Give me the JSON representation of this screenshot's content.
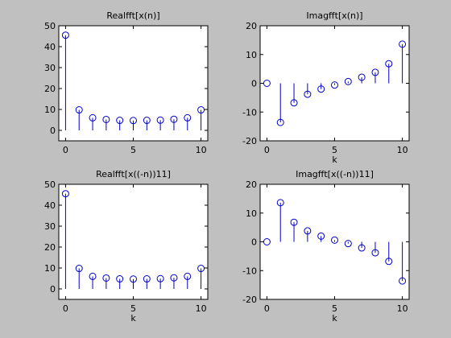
{
  "figure": {
    "background": "#c0c0c0",
    "axes_background": "#ffffff",
    "stem_color": "#0000cc"
  },
  "chart_data": [
    {
      "type": "stem",
      "title": "Realfft[x(n)]",
      "xlabel": "",
      "ylabel": "",
      "xlim": [
        -0.5,
        10.5
      ],
      "ylim": [
        -5,
        50
      ],
      "xticks": [
        0,
        5,
        10
      ],
      "yticks": [
        0,
        10,
        20,
        30,
        40,
        50
      ],
      "x": [
        0,
        1,
        2,
        3,
        4,
        5,
        6,
        7,
        8,
        9,
        10
      ],
      "values": [
        45.5,
        9.8,
        6.0,
        5.2,
        4.8,
        4.7,
        4.8,
        4.9,
        5.3,
        6.0,
        9.8
      ]
    },
    {
      "type": "stem",
      "title": "Imagfft[x(n)]",
      "xlabel": "k",
      "ylabel": "",
      "xlim": [
        -0.5,
        10.5
      ],
      "ylim": [
        -20,
        20
      ],
      "xticks": [
        0,
        5,
        10
      ],
      "yticks": [
        -20,
        -10,
        0,
        10,
        20
      ],
      "x": [
        0,
        1,
        2,
        3,
        4,
        5,
        6,
        7,
        8,
        9,
        10
      ],
      "values": [
        0,
        -13.6,
        -6.8,
        -3.8,
        -2.0,
        -0.6,
        0.6,
        2.1,
        3.8,
        6.8,
        13.6
      ]
    },
    {
      "type": "stem",
      "title": "Realfft[x((-n))11]",
      "xlabel": "k",
      "ylabel": "",
      "xlim": [
        -0.5,
        10.5
      ],
      "ylim": [
        -5,
        50
      ],
      "xticks": [
        0,
        5,
        10
      ],
      "yticks": [
        0,
        10,
        20,
        30,
        40,
        50
      ],
      "x": [
        0,
        1,
        2,
        3,
        4,
        5,
        6,
        7,
        8,
        9,
        10
      ],
      "values": [
        45.5,
        9.8,
        6.0,
        5.2,
        4.8,
        4.7,
        4.8,
        4.9,
        5.3,
        6.0,
        9.8
      ]
    },
    {
      "type": "stem",
      "title": "Imagfft[x((-n))11]",
      "xlabel": "k",
      "ylabel": "",
      "xlim": [
        -0.5,
        10.5
      ],
      "ylim": [
        -20,
        20
      ],
      "xticks": [
        0,
        5,
        10
      ],
      "yticks": [
        -20,
        -10,
        0,
        10,
        20
      ],
      "x": [
        0,
        1,
        2,
        3,
        4,
        5,
        6,
        7,
        8,
        9,
        10
      ],
      "values": [
        0,
        13.6,
        6.8,
        3.8,
        2.0,
        0.6,
        -0.6,
        -2.1,
        -3.8,
        -6.8,
        -13.6
      ]
    }
  ]
}
